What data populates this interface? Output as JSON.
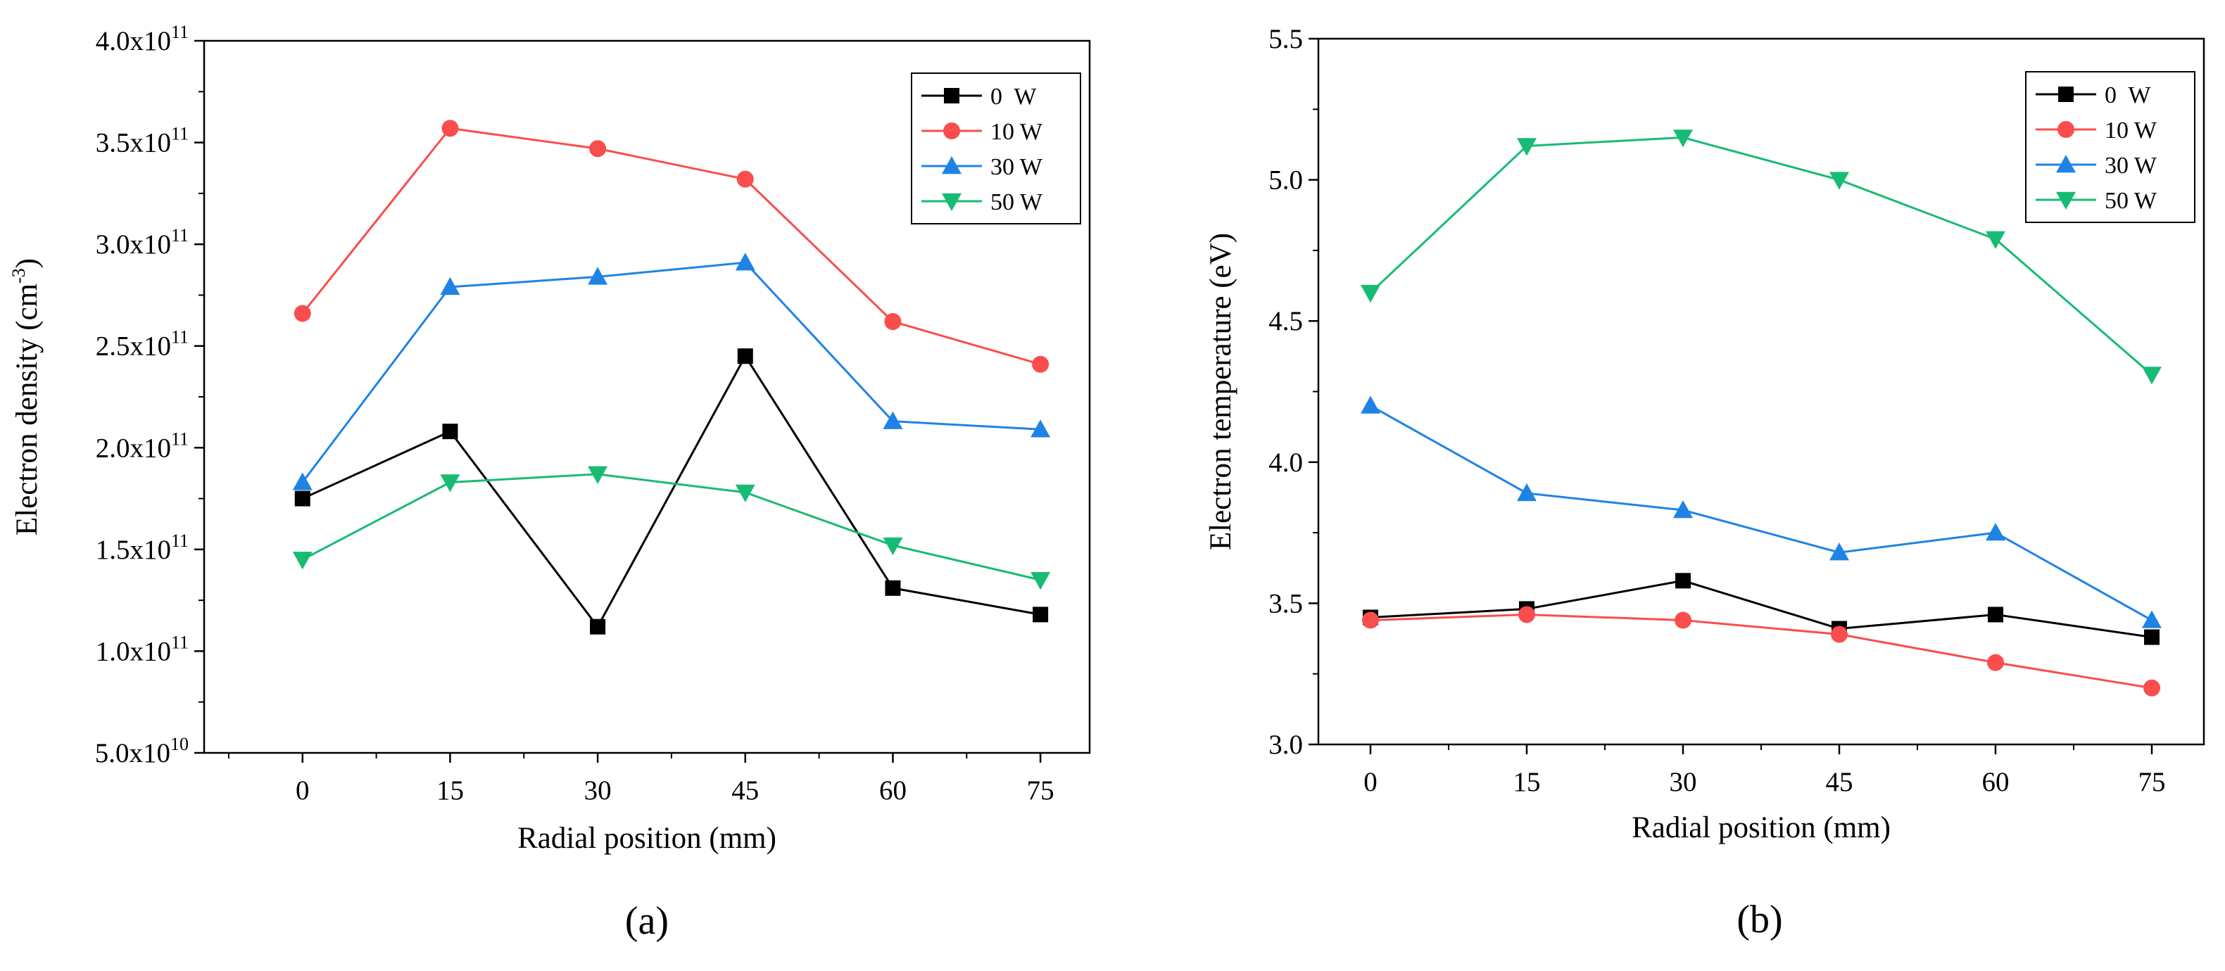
{
  "chart_data": [
    {
      "type": "line",
      "panel_label": "(a)",
      "xlabel": "Radial position (mm)",
      "ylabel": "Electron density (cm⁻³)",
      "ylabel_main": "Electron density (cm",
      "ylabel_sup": "-3",
      "ylabel_close": ")",
      "x": [
        0,
        15,
        30,
        45,
        60,
        75
      ],
      "xticks": [
        "0",
        "15",
        "30",
        "45",
        "60",
        "75"
      ],
      "xlim": [
        -10,
        80
      ],
      "ylim": [
        50000000000.0,
        400000000000.0
      ],
      "yticks": [
        {
          "value": 50000000000.0,
          "mant": "5.0x10",
          "exp": "10"
        },
        {
          "value": 100000000000.0,
          "mant": "1.0x10",
          "exp": "11"
        },
        {
          "value": 150000000000.0,
          "mant": "1.5x10",
          "exp": "11"
        },
        {
          "value": 200000000000.0,
          "mant": "2.0x10",
          "exp": "11"
        },
        {
          "value": 250000000000.0,
          "mant": "2.5x10",
          "exp": "11"
        },
        {
          "value": 300000000000.0,
          "mant": "3.0x10",
          "exp": "11"
        },
        {
          "value": 350000000000.0,
          "mant": "3.5x10",
          "exp": "11"
        },
        {
          "value": 400000000000.0,
          "mant": "4.0x10",
          "exp": "11"
        }
      ],
      "legend_position": "top-right",
      "series": [
        {
          "name": "0  W",
          "color": "#000000",
          "marker": "square",
          "values": [
            175000000000.0,
            208000000000.0,
            112000000000.0,
            245000000000.0,
            131000000000.0,
            118000000000.0
          ]
        },
        {
          "name": "10 W",
          "color": "#fa4d4d",
          "marker": "circle",
          "values": [
            266000000000.0,
            357000000000.0,
            347000000000.0,
            332000000000.0,
            262000000000.0,
            241000000000.0
          ]
        },
        {
          "name": "30 W",
          "color": "#1f83e6",
          "marker": "triangle-up",
          "values": [
            183000000000.0,
            279000000000.0,
            284000000000.0,
            291000000000.0,
            213000000000.0,
            209000000000.0
          ]
        },
        {
          "name": "50 W",
          "color": "#18bb74",
          "marker": "triangle-down",
          "values": [
            145000000000.0,
            183000000000.0,
            187000000000.0,
            178000000000.0,
            152000000000.0,
            135000000000.0
          ]
        }
      ]
    },
    {
      "type": "line",
      "panel_label": "(b)",
      "xlabel": "Radial position (mm)",
      "ylabel": "Electron temperature (eV)",
      "x": [
        0,
        15,
        30,
        45,
        60,
        75
      ],
      "xticks": [
        "0",
        "15",
        "30",
        "45",
        "60",
        "75"
      ],
      "xlim": [
        -5,
        80
      ],
      "ylim": [
        3.0,
        5.5
      ],
      "yticks": [
        {
          "value": 3.0,
          "label": "3.0"
        },
        {
          "value": 3.5,
          "label": "3.5"
        },
        {
          "value": 4.0,
          "label": "4.0"
        },
        {
          "value": 4.5,
          "label": "4.5"
        },
        {
          "value": 5.0,
          "label": "5.0"
        },
        {
          "value": 5.5,
          "label": "5.5"
        }
      ],
      "legend_position": "top-right",
      "series": [
        {
          "name": "0  W",
          "color": "#000000",
          "marker": "square",
          "values": [
            3.45,
            3.48,
            3.58,
            3.41,
            3.46,
            3.38
          ]
        },
        {
          "name": "10 W",
          "color": "#fa4d4d",
          "marker": "circle",
          "values": [
            3.44,
            3.46,
            3.44,
            3.39,
            3.29,
            3.2
          ]
        },
        {
          "name": "30 W",
          "color": "#1f83e6",
          "marker": "triangle-up",
          "values": [
            4.2,
            3.89,
            3.83,
            3.68,
            3.75,
            3.44
          ]
        },
        {
          "name": "50 W",
          "color": "#18bb74",
          "marker": "triangle-down",
          "values": [
            4.6,
            5.12,
            5.15,
            5.0,
            4.79,
            4.31
          ]
        }
      ]
    }
  ]
}
